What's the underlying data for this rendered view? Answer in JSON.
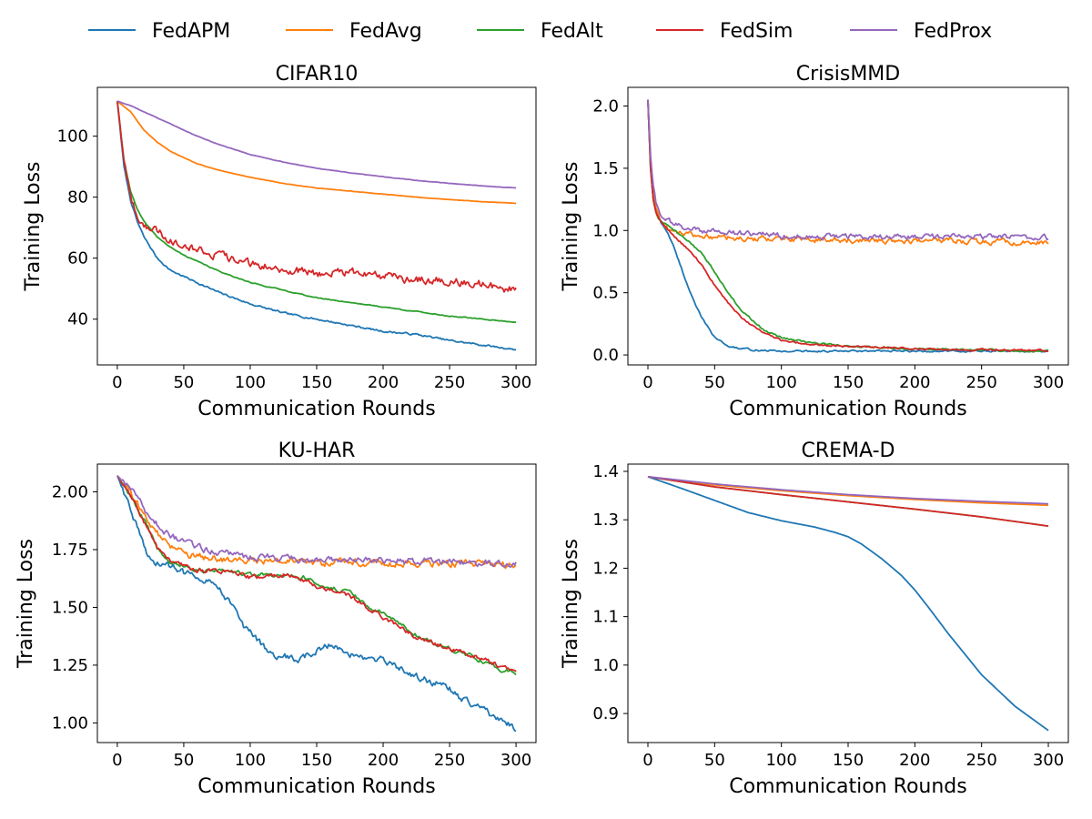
{
  "legend": {
    "placement": "top-center",
    "entries": [
      {
        "label": "FedAPM",
        "color": "#1f77b4"
      },
      {
        "label": "FedAvg",
        "color": "#ff7f0e"
      },
      {
        "label": "FedAlt",
        "color": "#2ca02c"
      },
      {
        "label": "FedSim",
        "color": "#d62728"
      },
      {
        "label": "FedProx",
        "color": "#9467bd"
      }
    ]
  },
  "chart_data": [
    {
      "type": "line",
      "title": "CIFAR10",
      "xlabel": "Communication Rounds",
      "ylabel": "Training Loss",
      "xlim": [
        -15,
        315
      ],
      "ylim": [
        25,
        116
      ],
      "xticks": [
        0,
        50,
        100,
        150,
        200,
        250,
        300
      ],
      "yticks": [
        40,
        60,
        80,
        100
      ],
      "tick_decimals": 0,
      "grid": false,
      "series": [
        {
          "name": "FedAPM",
          "color": "#1f77b4",
          "noise": 0.25,
          "x": [
            0,
            5,
            10,
            15,
            20,
            30,
            40,
            50,
            60,
            75,
            100,
            125,
            150,
            175,
            200,
            225,
            250,
            275,
            300
          ],
          "y": [
            111.5,
            90,
            79,
            72,
            67,
            60,
            56,
            54,
            52,
            49,
            45,
            42,
            40,
            38,
            36,
            35,
            33,
            31.5,
            30
          ]
        },
        {
          "name": "FedAvg",
          "color": "#ff7f0e",
          "noise": 0.05,
          "x": [
            0,
            10,
            20,
            30,
            40,
            50,
            60,
            75,
            100,
            125,
            150,
            175,
            200,
            225,
            250,
            275,
            300
          ],
          "y": [
            111.5,
            108,
            102,
            98,
            95,
            93,
            91,
            89,
            86.5,
            84.5,
            83,
            82,
            81,
            80,
            79.2,
            78.5,
            78
          ]
        },
        {
          "name": "FedAlt",
          "color": "#2ca02c",
          "noise": 0.12,
          "x": [
            0,
            5,
            10,
            15,
            20,
            30,
            40,
            50,
            60,
            75,
            100,
            125,
            150,
            175,
            200,
            225,
            250,
            275,
            300
          ],
          "y": [
            111.5,
            92,
            82,
            76,
            72,
            67,
            63.5,
            61,
            59,
            56,
            52,
            49.5,
            47,
            45.5,
            44,
            42.5,
            41,
            40,
            39
          ]
        },
        {
          "name": "FedSim",
          "color": "#d62728",
          "noise": 1.1,
          "x": [
            0,
            5,
            10,
            15,
            20,
            30,
            40,
            50,
            60,
            75,
            100,
            125,
            150,
            175,
            200,
            225,
            250,
            275,
            290,
            300
          ],
          "y": [
            111.5,
            92,
            80,
            74,
            71,
            69,
            66,
            65,
            63,
            61,
            58,
            56.5,
            55,
            55.5,
            54,
            53,
            52.5,
            51.5,
            49.5,
            50
          ]
        },
        {
          "name": "FedProx",
          "color": "#9467bd",
          "noise": 0.05,
          "x": [
            0,
            10,
            20,
            30,
            40,
            50,
            60,
            75,
            100,
            125,
            150,
            175,
            200,
            225,
            250,
            275,
            300
          ],
          "y": [
            111.5,
            110,
            108,
            106,
            104,
            102,
            100,
            97.5,
            94,
            91.5,
            89.5,
            88,
            86.7,
            85.5,
            84.5,
            83.7,
            83
          ]
        }
      ]
    },
    {
      "type": "line",
      "title": "CrisisMMD",
      "xlabel": "Communication Rounds",
      "ylabel": "Training Loss",
      "xlim": [
        -15,
        315
      ],
      "ylim": [
        -0.08,
        2.15
      ],
      "xticks": [
        0,
        50,
        100,
        150,
        200,
        250,
        300
      ],
      "yticks": [
        0,
        0.5,
        1,
        1.5,
        2
      ],
      "tick_decimals": 1,
      "grid": false,
      "series": [
        {
          "name": "FedAPM",
          "color": "#1f77b4",
          "noise": 0.006,
          "x": [
            0,
            2,
            4,
            6,
            8,
            10,
            15,
            20,
            30,
            40,
            50,
            60,
            70,
            80,
            100,
            150,
            200,
            250,
            300
          ],
          "y": [
            2.05,
            1.5,
            1.25,
            1.15,
            1.1,
            1.06,
            0.98,
            0.85,
            0.55,
            0.3,
            0.14,
            0.07,
            0.05,
            0.04,
            0.03,
            0.03,
            0.03,
            0.03,
            0.03
          ]
        },
        {
          "name": "FedAvg",
          "color": "#ff7f0e",
          "noise": 0.018,
          "x": [
            0,
            2,
            4,
            6,
            8,
            10,
            15,
            20,
            30,
            40,
            50,
            75,
            100,
            150,
            200,
            250,
            300
          ],
          "y": [
            2.05,
            1.55,
            1.3,
            1.18,
            1.12,
            1.07,
            1.02,
            0.99,
            0.97,
            0.95,
            0.95,
            0.93,
            0.93,
            0.92,
            0.92,
            0.91,
            0.9
          ]
        },
        {
          "name": "FedAlt",
          "color": "#2ca02c",
          "noise": 0.006,
          "x": [
            0,
            2,
            4,
            6,
            8,
            10,
            15,
            20,
            30,
            40,
            50,
            60,
            70,
            80,
            90,
            100,
            110,
            130,
            150,
            200,
            250,
            300
          ],
          "y": [
            2.05,
            1.5,
            1.25,
            1.15,
            1.1,
            1.08,
            1.04,
            1.0,
            0.92,
            0.82,
            0.67,
            0.5,
            0.36,
            0.26,
            0.18,
            0.14,
            0.12,
            0.09,
            0.07,
            0.05,
            0.04,
            0.03
          ]
        },
        {
          "name": "FedSim",
          "color": "#d62728",
          "noise": 0.006,
          "x": [
            0,
            2,
            4,
            6,
            8,
            10,
            15,
            20,
            30,
            40,
            50,
            60,
            70,
            80,
            90,
            100,
            110,
            130,
            150,
            200,
            250,
            300
          ],
          "y": [
            2.05,
            1.5,
            1.25,
            1.15,
            1.1,
            1.06,
            1.01,
            0.95,
            0.85,
            0.73,
            0.56,
            0.42,
            0.3,
            0.22,
            0.16,
            0.12,
            0.1,
            0.08,
            0.07,
            0.05,
            0.04,
            0.035
          ]
        },
        {
          "name": "FedProx",
          "color": "#9467bd",
          "noise": 0.018,
          "x": [
            0,
            2,
            4,
            6,
            8,
            10,
            15,
            20,
            30,
            40,
            50,
            75,
            100,
            150,
            200,
            250,
            300
          ],
          "y": [
            2.05,
            1.6,
            1.35,
            1.22,
            1.16,
            1.12,
            1.08,
            1.05,
            1.02,
            1.0,
            0.99,
            0.97,
            0.96,
            0.95,
            0.95,
            0.95,
            0.94
          ]
        }
      ]
    },
    {
      "type": "line",
      "title": "KU-HAR",
      "xlabel": "Communication Rounds",
      "ylabel": "Training Loss",
      "xlim": [
        -15,
        315
      ],
      "ylim": [
        0.915,
        2.12
      ],
      "xticks": [
        0,
        50,
        100,
        150,
        200,
        250,
        300
      ],
      "yticks": [
        1,
        1.25,
        1.5,
        1.75,
        2
      ],
      "tick_decimals": 2,
      "grid": false,
      "series": [
        {
          "name": "FedAPM",
          "color": "#1f77b4",
          "noise": 0.012,
          "x": [
            0,
            10,
            20,
            25,
            30,
            40,
            50,
            60,
            75,
            85,
            95,
            105,
            115,
            125,
            135,
            150,
            160,
            170,
            180,
            200,
            210,
            225,
            240,
            250,
            260,
            275,
            290,
            300
          ],
          "y": [
            2.07,
            1.93,
            1.76,
            1.7,
            1.69,
            1.68,
            1.65,
            1.64,
            1.6,
            1.52,
            1.42,
            1.36,
            1.3,
            1.29,
            1.27,
            1.31,
            1.34,
            1.32,
            1.28,
            1.27,
            1.24,
            1.2,
            1.17,
            1.15,
            1.1,
            1.06,
            1.0,
            0.98
          ]
        },
        {
          "name": "FedAvg",
          "color": "#ff7f0e",
          "noise": 0.012,
          "x": [
            0,
            10,
            20,
            30,
            40,
            50,
            60,
            75,
            100,
            125,
            150,
            175,
            200,
            225,
            250,
            275,
            300
          ],
          "y": [
            2.07,
            2.0,
            1.9,
            1.82,
            1.76,
            1.73,
            1.72,
            1.71,
            1.7,
            1.7,
            1.69,
            1.7,
            1.69,
            1.69,
            1.69,
            1.69,
            1.68
          ]
        },
        {
          "name": "FedAlt",
          "color": "#2ca02c",
          "noise": 0.008,
          "x": [
            0,
            10,
            20,
            30,
            40,
            50,
            60,
            75,
            100,
            125,
            140,
            150,
            165,
            175,
            185,
            200,
            225,
            250,
            275,
            290,
            300
          ],
          "y": [
            2.07,
            1.98,
            1.88,
            1.76,
            1.7,
            1.68,
            1.66,
            1.66,
            1.64,
            1.64,
            1.63,
            1.6,
            1.58,
            1.56,
            1.52,
            1.47,
            1.38,
            1.32,
            1.27,
            1.23,
            1.22
          ]
        },
        {
          "name": "FedSim",
          "color": "#d62728",
          "noise": 0.008,
          "x": [
            0,
            10,
            20,
            30,
            40,
            50,
            60,
            75,
            100,
            125,
            140,
            150,
            165,
            175,
            185,
            200,
            225,
            250,
            275,
            290,
            300
          ],
          "y": [
            2.07,
            1.98,
            1.87,
            1.76,
            1.7,
            1.68,
            1.66,
            1.66,
            1.63,
            1.64,
            1.62,
            1.59,
            1.57,
            1.55,
            1.51,
            1.46,
            1.37,
            1.32,
            1.28,
            1.24,
            1.22
          ]
        },
        {
          "name": "FedProx",
          "color": "#9467bd",
          "noise": 0.012,
          "x": [
            0,
            10,
            20,
            30,
            40,
            50,
            60,
            75,
            100,
            125,
            150,
            175,
            200,
            225,
            250,
            275,
            300
          ],
          "y": [
            2.07,
            2.01,
            1.93,
            1.86,
            1.81,
            1.78,
            1.76,
            1.74,
            1.72,
            1.71,
            1.7,
            1.71,
            1.7,
            1.7,
            1.7,
            1.69,
            1.69
          ]
        }
      ]
    },
    {
      "type": "line",
      "title": "CREMA-D",
      "xlabel": "Communication Rounds",
      "ylabel": "Training Loss",
      "xlim": [
        -15,
        315
      ],
      "ylim": [
        0.84,
        1.415
      ],
      "xticks": [
        0,
        50,
        100,
        150,
        200,
        250,
        300
      ],
      "yticks": [
        0.9,
        1,
        1.1,
        1.2,
        1.3,
        1.4
      ],
      "tick_decimals": 1,
      "grid": false,
      "series": [
        {
          "name": "FedAPM",
          "color": "#1f77b4",
          "noise": 0,
          "x": [
            0,
            25,
            50,
            75,
            100,
            125,
            140,
            150,
            160,
            175,
            190,
            200,
            210,
            225,
            250,
            275,
            300
          ],
          "y": [
            1.389,
            1.365,
            1.34,
            1.315,
            1.298,
            1.285,
            1.274,
            1.265,
            1.25,
            1.22,
            1.185,
            1.155,
            1.12,
            1.065,
            0.98,
            0.915,
            0.865
          ]
        },
        {
          "name": "FedAvg",
          "color": "#ff7f0e",
          "noise": 0,
          "x": [
            0,
            50,
            100,
            150,
            200,
            250,
            300
          ],
          "y": [
            1.389,
            1.372,
            1.36,
            1.35,
            1.342,
            1.335,
            1.33
          ]
        },
        {
          "name": "FedAlt",
          "color": "#2ca02c",
          "noise": 0,
          "x": [
            0,
            50,
            100,
            150,
            200,
            250,
            300
          ],
          "y": [
            1.389,
            1.368,
            1.352,
            1.337,
            1.322,
            1.306,
            1.287
          ]
        },
        {
          "name": "FedSim",
          "color": "#d62728",
          "noise": 0,
          "x": [
            0,
            50,
            100,
            150,
            200,
            250,
            300
          ],
          "y": [
            1.389,
            1.368,
            1.352,
            1.337,
            1.322,
            1.306,
            1.287
          ]
        },
        {
          "name": "FedProx",
          "color": "#9467bd",
          "noise": 0,
          "x": [
            0,
            50,
            100,
            150,
            200,
            250,
            300
          ],
          "y": [
            1.389,
            1.374,
            1.362,
            1.352,
            1.344,
            1.338,
            1.333
          ]
        }
      ]
    }
  ]
}
